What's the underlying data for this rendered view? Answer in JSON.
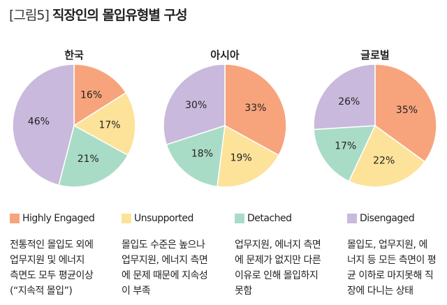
{
  "title": {
    "prefix": "[그림5]",
    "main": "직장인의 몰입유형별 구성"
  },
  "chart_data": [
    {
      "type": "pie",
      "title": "한국",
      "categories": [
        "Highly Engaged",
        "Unsupported",
        "Detached",
        "Disengaged"
      ],
      "values": [
        16,
        17,
        21,
        46
      ]
    },
    {
      "type": "pie",
      "title": "아시아",
      "categories": [
        "Highly Engaged",
        "Unsupported",
        "Detached",
        "Disengaged"
      ],
      "values": [
        33,
        19,
        18,
        30
      ]
    },
    {
      "type": "pie",
      "title": "글로벌",
      "categories": [
        "Highly Engaged",
        "Unsupported",
        "Detached",
        "Disengaged"
      ],
      "values": [
        35,
        22,
        17,
        26
      ]
    }
  ],
  "colors": [
    "#f7a47c",
    "#fde29a",
    "#a9dcc7",
    "#c9b9dc"
  ],
  "legend": [
    {
      "label": "Highly Engaged",
      "desc": [
        "전통적인 몰입도 외에",
        "업무지원 및 에너지",
        "측면도 모두 평균이상",
        "(“지속적 몰입”)"
      ]
    },
    {
      "label": "Unsupported",
      "desc": [
        "몰입도 수준은 높으나",
        "업무지원, 에너지 측면",
        "에 문제 때문에 지속성",
        "이 부족"
      ]
    },
    {
      "label": "Detached",
      "desc": [
        "업무지원, 에너지 측면",
        "에 문제가 없지만 다른",
        "이유로 인해 몰입하지",
        "못함"
      ]
    },
    {
      "label": "Disengaged",
      "desc": [
        "몰입도, 업무지원, 에",
        "너지 등 모든 측면이 평",
        "균 이하로 마지못해 직",
        "장에 다니는 상태"
      ]
    }
  ]
}
